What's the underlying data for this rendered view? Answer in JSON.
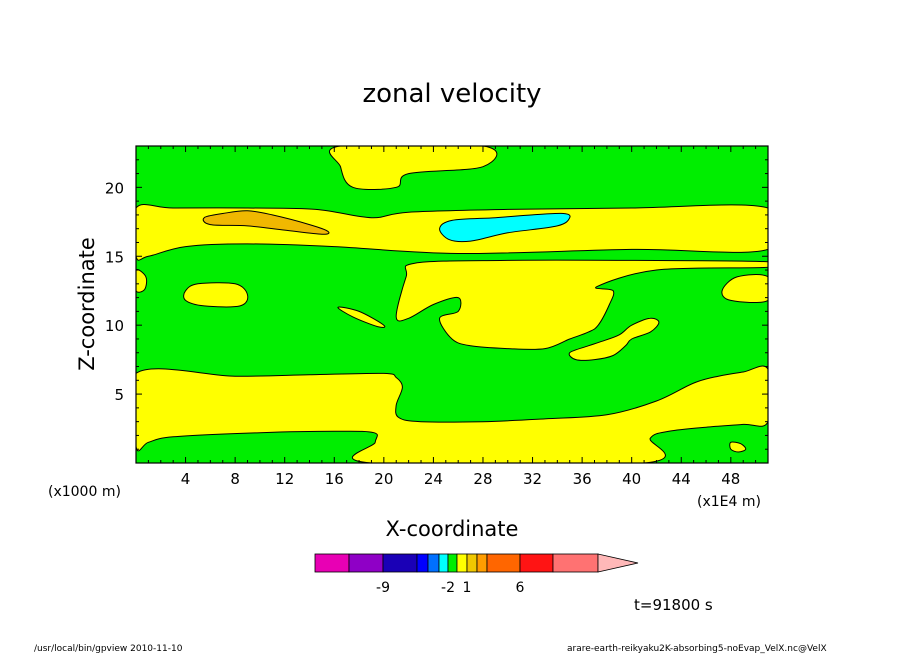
{
  "chart_data": {
    "type": "heatmap",
    "title": "zonal velocity",
    "xlabel": "X-coordinate",
    "ylabel": "Z-coordinate",
    "x_unit_label": "(x1E4 m)",
    "y_unit_label": "(x1000 m)",
    "xlim": [
      0,
      51
    ],
    "ylim": [
      0,
      23
    ],
    "x_ticks": [
      4,
      8,
      12,
      16,
      20,
      24,
      28,
      32,
      36,
      40,
      44,
      48
    ],
    "y_ticks": [
      5,
      10,
      15,
      20
    ],
    "background_level_color": "#00ee00",
    "regions": [
      {
        "level": "yellow",
        "color": "#ffff00",
        "points": [
          [
            16.5,
            23
          ],
          [
            28,
            23
          ],
          [
            28,
            21.5
          ],
          [
            22,
            21
          ],
          [
            21,
            20
          ],
          [
            17.5,
            20
          ],
          [
            16.5,
            21.5
          ]
        ]
      },
      {
        "level": "yellow",
        "color": "#ffff00",
        "points": [
          [
            0,
            18.5
          ],
          [
            3,
            18.5
          ],
          [
            9,
            18.5
          ],
          [
            14.5,
            18.4
          ],
          [
            19,
            17.8
          ],
          [
            22,
            18.2
          ],
          [
            30,
            18.4
          ],
          [
            40,
            18.5
          ],
          [
            51,
            18.5
          ],
          [
            51,
            15.5
          ],
          [
            40,
            15.5
          ],
          [
            26,
            15.2
          ],
          [
            16,
            15.7
          ],
          [
            9,
            15.9
          ],
          [
            4,
            15.7
          ],
          [
            1,
            15
          ],
          [
            0,
            15
          ]
        ]
      },
      {
        "level": "yellow",
        "color": "#ffff00",
        "points": [
          [
            0,
            14
          ],
          [
            0.8,
            13.5
          ],
          [
            0.7,
            12.6
          ],
          [
            0,
            12.5
          ]
        ]
      },
      {
        "level": "yellow",
        "color": "#ffff00",
        "points": [
          [
            4,
            12.5
          ],
          [
            5,
            13
          ],
          [
            8,
            13
          ],
          [
            9,
            12.2
          ],
          [
            8.4,
            11.4
          ],
          [
            5.5,
            11.4
          ],
          [
            4,
            11.8
          ]
        ]
      },
      {
        "level": "yellow",
        "color": "#ffff00",
        "points": [
          [
            51,
            13.5
          ],
          [
            48.5,
            13.5
          ],
          [
            47.3,
            12.5
          ],
          [
            48,
            11.8
          ],
          [
            51,
            11.8
          ]
        ]
      },
      {
        "level": "yellow",
        "color": "#ffff00",
        "points": [
          [
            16.3,
            11.3
          ],
          [
            18,
            11
          ],
          [
            20,
            10
          ],
          [
            19.5,
            9.9
          ],
          [
            17.5,
            10.6
          ]
        ]
      },
      {
        "level": "yellow",
        "color": "#ffff00",
        "points": [
          [
            21,
            10.6
          ],
          [
            21.8,
            13.5
          ],
          [
            22.5,
            14.5
          ],
          [
            30,
            14.7
          ],
          [
            40,
            14.7
          ],
          [
            51,
            14.6
          ],
          [
            51,
            14.2
          ],
          [
            42,
            14
          ],
          [
            37.2,
            12.8
          ],
          [
            38.5,
            12.5
          ],
          [
            38.2,
            11.5
          ],
          [
            37.3,
            10
          ],
          [
            36.5,
            9.5
          ],
          [
            35,
            9
          ],
          [
            33,
            8.3
          ],
          [
            30,
            8.3
          ],
          [
            27,
            8.5
          ],
          [
            25.5,
            9
          ],
          [
            24.5,
            10.5
          ],
          [
            26,
            11
          ],
          [
            26,
            12
          ],
          [
            24,
            11.5
          ],
          [
            22,
            10.5
          ]
        ]
      },
      {
        "level": "yellow",
        "color": "#ffff00",
        "points": [
          [
            35,
            8
          ],
          [
            36.5,
            8.5
          ],
          [
            37.5,
            8.8
          ],
          [
            39,
            9.3
          ],
          [
            40,
            10
          ],
          [
            41.5,
            10.5
          ],
          [
            42.2,
            10.2
          ],
          [
            41.5,
            9.5
          ],
          [
            40,
            9
          ],
          [
            39.5,
            8.5
          ],
          [
            38.5,
            7.8
          ],
          [
            37,
            7.5
          ],
          [
            35.5,
            7.5
          ]
        ]
      },
      {
        "level": "yellow",
        "color": "#ffff00",
        "points": [
          [
            0,
            6.5
          ],
          [
            8,
            6.3
          ],
          [
            14,
            6.4
          ],
          [
            20,
            6.5
          ],
          [
            21,
            6.2
          ],
          [
            21.5,
            5.5
          ],
          [
            21,
            4.2
          ],
          [
            21.2,
            3.3
          ],
          [
            23,
            3
          ],
          [
            28,
            3
          ],
          [
            33,
            3.2
          ],
          [
            38,
            3.5
          ],
          [
            42,
            4.5
          ],
          [
            45,
            5.8
          ],
          [
            47,
            6.3
          ],
          [
            49,
            6.6
          ],
          [
            51,
            6.8
          ],
          [
            51,
            3
          ],
          [
            49,
            2.8
          ],
          [
            46,
            2.6
          ],
          [
            43,
            2.3
          ],
          [
            41.5,
            1.8
          ],
          [
            41,
            0
          ],
          [
            19,
            0
          ],
          [
            19.3,
            1.5
          ],
          [
            19.2,
            2.2
          ],
          [
            16,
            2.3
          ],
          [
            10,
            2.2
          ],
          [
            3,
            1.9
          ],
          [
            1,
            1.5
          ],
          [
            0,
            1.2
          ]
        ]
      },
      {
        "level": "yellow",
        "color": "#ffff00",
        "points": [
          [
            48,
            1.5
          ],
          [
            48.8,
            1.4
          ],
          [
            49.2,
            1
          ],
          [
            48.6,
            0.8
          ],
          [
            48,
            1
          ]
        ]
      },
      {
        "level": "orange",
        "color": "#f0b800",
        "points": [
          [
            5.5,
            17.8
          ],
          [
            7,
            18.1
          ],
          [
            9,
            18.3
          ],
          [
            11,
            18
          ],
          [
            14,
            17.3
          ],
          [
            15.5,
            16.8
          ],
          [
            15,
            16.6
          ],
          [
            12,
            16.9
          ],
          [
            9,
            17.2
          ],
          [
            6,
            17.3
          ]
        ]
      },
      {
        "level": "cyan",
        "color": "#00ffff",
        "points": [
          [
            24.5,
            17
          ],
          [
            25.5,
            17.6
          ],
          [
            29,
            17.8
          ],
          [
            32,
            18
          ],
          [
            34.5,
            18.1
          ],
          [
            35,
            17.8
          ],
          [
            34,
            17.2
          ],
          [
            30,
            16.7
          ],
          [
            27,
            16.1
          ],
          [
            25.3,
            16.2
          ]
        ]
      }
    ],
    "colorbar": {
      "segments": [
        {
          "color": "#e800b4"
        },
        {
          "color": "#8f00c6"
        },
        {
          "color": "#1a00b6"
        },
        {
          "color": "#0000ff"
        },
        {
          "color": "#0070ff"
        },
        {
          "color": "#00ffff"
        },
        {
          "color": "#00ee00"
        },
        {
          "color": "#ffff00"
        },
        {
          "color": "#f0c800"
        },
        {
          "color": "#ff9d00"
        },
        {
          "color": "#ff6600"
        },
        {
          "color": "#ff1414"
        },
        {
          "color": "#ff7272"
        }
      ],
      "arrow_color": "#ffb8b8",
      "labels": [
        {
          "text": "-9",
          "segment_index": 1
        },
        {
          "text": "-2",
          "segment_index": 5
        },
        {
          "text": "1",
          "segment_index": 7
        },
        {
          "text": "6",
          "segment_index": 10
        }
      ]
    }
  },
  "time_label": "t=91800 s",
  "footer": {
    "left": "/usr/local/bin/gpview  2010-11-10",
    "right": "arare-earth-reikyaku2K-absorbing5-noEvap_VelX.nc@VelX"
  }
}
